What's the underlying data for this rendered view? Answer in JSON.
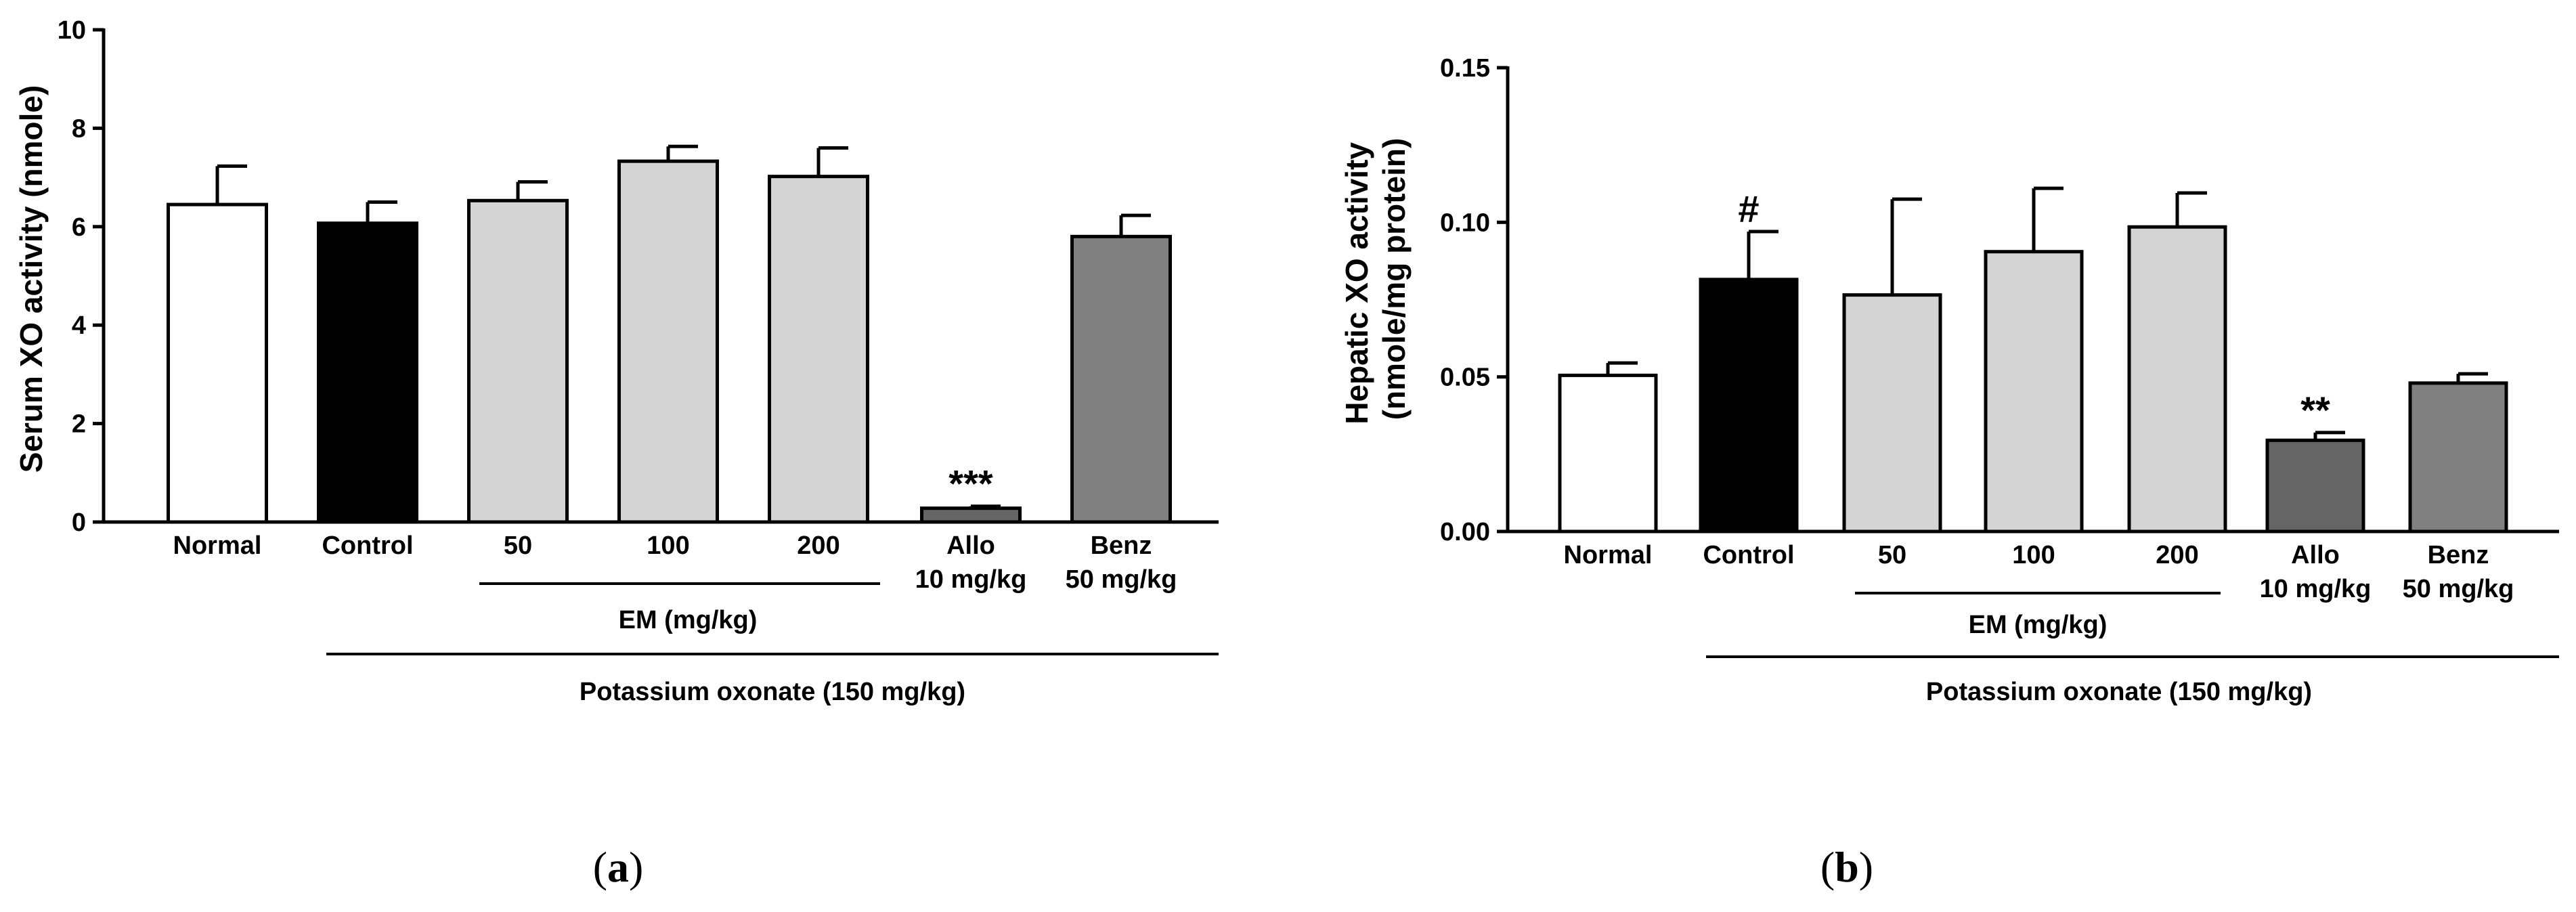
{
  "chart_data": [
    {
      "type": "bar",
      "panel_label": "a",
      "ylabel": "Serum XO activity (nmole)",
      "ylim": [
        0,
        10
      ],
      "yticks": [
        "0",
        "2",
        "4",
        "6",
        "8",
        "10"
      ],
      "categories": [
        {
          "line1": "Normal",
          "line2": ""
        },
        {
          "line1": "Control",
          "line2": ""
        },
        {
          "line1": "50",
          "line2": ""
        },
        {
          "line1": "100",
          "line2": ""
        },
        {
          "line1": "200",
          "line2": ""
        },
        {
          "line1": "Allo",
          "line2": "10 mg/kg"
        },
        {
          "line1": "Benz",
          "line2": "50 mg/kg"
        }
      ],
      "values": [
        6.45,
        6.07,
        6.53,
        7.33,
        7.02,
        0.28,
        5.8
      ],
      "errors": [
        0.78,
        0.43,
        0.38,
        0.3,
        0.58,
        0.04,
        0.43
      ],
      "bar_colors": [
        "#ffffff",
        "#000000",
        "#d4d4d4",
        "#d4d4d4",
        "#d4d4d4",
        "#656565",
        "#808080"
      ],
      "annotations": [
        "",
        "",
        "",
        "",
        "",
        "***",
        ""
      ],
      "em_group_label": "EM (mg/kg)",
      "treatment_label": "Potassium oxonate (150 mg/kg)"
    },
    {
      "type": "bar",
      "panel_label": "b",
      "ylabel_line1": "Hepatic XO activity",
      "ylabel_line2": "(nmole/mg protein)",
      "ylim": [
        0,
        0.15
      ],
      "yticks": [
        "0.00",
        "0.05",
        "0.10",
        "0.15"
      ],
      "categories": [
        {
          "line1": "Normal",
          "line2": ""
        },
        {
          "line1": "Control",
          "line2": ""
        },
        {
          "line1": "50",
          "line2": ""
        },
        {
          "line1": "100",
          "line2": ""
        },
        {
          "line1": "200",
          "line2": ""
        },
        {
          "line1": "Allo",
          "line2": "10 mg/kg"
        },
        {
          "line1": "Benz",
          "line2": "50 mg/kg"
        }
      ],
      "values": [
        0.0505,
        0.0815,
        0.0765,
        0.0905,
        0.0985,
        0.0295,
        0.048
      ],
      "errors": [
        0.004,
        0.0155,
        0.031,
        0.0205,
        0.011,
        0.0025,
        0.003
      ],
      "bar_colors": [
        "#ffffff",
        "#000000",
        "#d4d4d4",
        "#d4d4d4",
        "#d4d4d4",
        "#656565",
        "#808080"
      ],
      "annotations": [
        "",
        "#",
        "",
        "",
        "",
        "**",
        ""
      ],
      "em_group_label": "EM (mg/kg)",
      "treatment_label": "Potassium oxonate (150 mg/kg)"
    }
  ]
}
